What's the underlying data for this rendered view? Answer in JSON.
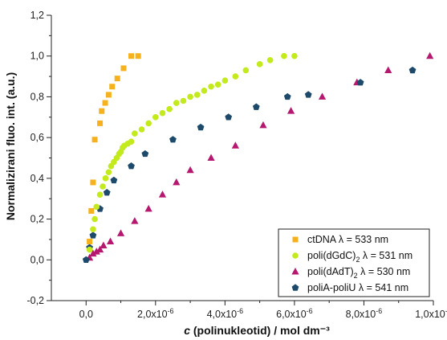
{
  "chart_data": {
    "type": "scatter",
    "xlabel": {
      "italic": "c",
      "rest": " (polinukleotid) / mol dm⁻³"
    },
    "ylabel": "Normalizirani fluo. int. (a.u.)",
    "xlim": [
      -1e-06,
      1e-05
    ],
    "ylim": [
      -0.2,
      1.2
    ],
    "x_ticks": [
      0,
      2e-06,
      4e-06,
      6e-06,
      8e-06,
      1e-05
    ],
    "x_tick_labels": [
      "0,0",
      "2,0x10-6",
      "4,0x10-6",
      "6,0x10-6",
      "8,0x10-6",
      "1,0x10-5"
    ],
    "y_ticks": [
      -0.2,
      0.0,
      0.2,
      0.4,
      0.6,
      0.8,
      1.0,
      1.2
    ],
    "y_tick_labels": [
      "-0,2",
      "0,0",
      "0,2",
      "0,4",
      "0,6",
      "0,8",
      "1,0",
      "1,2"
    ],
    "legend_position": "bottom-right",
    "series": [
      {
        "name": "ctDNA λ = 533 nm",
        "marker": "square",
        "color": "#f5b21e",
        "x": [
          1e-07,
          1.5e-07,
          2e-07,
          2.5e-07,
          4e-07,
          4.5e-07,
          5.5e-07,
          6.5e-07,
          7.5e-07,
          9e-07,
          1.08e-06,
          1.3e-06,
          1.5e-06
        ],
        "y": [
          0.09,
          0.24,
          0.38,
          0.59,
          0.67,
          0.73,
          0.77,
          0.81,
          0.85,
          0.89,
          0.94,
          1.0,
          1.0
        ]
      },
      {
        "name_main": "poli(dGdC)",
        "name_sub": "2",
        "name_rest": " λ = 531 nm",
        "marker": "circle",
        "color": "#c3ea1c",
        "x": [
          1e-07,
          2e-07,
          2.5e-07,
          3e-07,
          4e-07,
          4.8e-07,
          5.6e-07,
          6.5e-07,
          7.2e-07,
          8e-07,
          8.8e-07,
          9.5e-07,
          1e-06,
          1.05e-06,
          1.1e-06,
          1.2e-06,
          1.3e-06,
          1.4e-06,
          1.6e-06,
          1.8e-06,
          2e-06,
          2.2e-06,
          2.4e-06,
          2.6e-06,
          2.8e-06,
          3e-06,
          3.2e-06,
          3.4e-06,
          3.6e-06,
          3.8e-06,
          4e-06,
          4.3e-06,
          4.6e-06,
          5e-06,
          5.3e-06,
          5.7e-06,
          6e-06
        ],
        "y": [
          0.05,
          0.15,
          0.2,
          0.26,
          0.32,
          0.36,
          0.4,
          0.43,
          0.46,
          0.48,
          0.5,
          0.52,
          0.53,
          0.55,
          0.56,
          0.57,
          0.58,
          0.62,
          0.64,
          0.67,
          0.7,
          0.72,
          0.74,
          0.77,
          0.78,
          0.8,
          0.81,
          0.83,
          0.85,
          0.86,
          0.88,
          0.9,
          0.93,
          0.96,
          0.98,
          1.0,
          1.0
        ],
        "name": "poli(dGdC)2 λ = 531 nm"
      },
      {
        "name_main": "poli(dAdT)",
        "name_sub": "2",
        "name_rest": " λ = 530 nm",
        "marker": "triangle",
        "color": "#b5186e",
        "x": [
          1e-07,
          2e-07,
          3e-07,
          4e-07,
          5e-07,
          7e-07,
          1e-06,
          1.4e-06,
          1.8e-06,
          2.2e-06,
          2.6e-06,
          3e-06,
          3.6e-06,
          4.3e-06,
          5.1e-06,
          5.9e-06,
          6.8e-06,
          7.8e-06,
          8.7e-06,
          9.9e-06
        ],
        "y": [
          0.01,
          0.03,
          0.04,
          0.05,
          0.07,
          0.09,
          0.13,
          0.19,
          0.25,
          0.32,
          0.38,
          0.44,
          0.5,
          0.56,
          0.66,
          0.73,
          0.8,
          0.87,
          0.93,
          1.0
        ],
        "name": "poli(dAdT)2 λ = 530 nm"
      },
      {
        "name": "poliA-poliU λ = 541 nm",
        "marker": "pentagon",
        "color": "#1d4a6b",
        "x": [
          0.0,
          1e-07,
          2e-07,
          4e-07,
          6e-07,
          8e-07,
          1.3e-06,
          1.7e-06,
          2.5e-06,
          3.3e-06,
          4.1e-06,
          4.9e-06,
          5.8e-06,
          6.4e-06,
          7.9e-06,
          9.4e-06
        ],
        "y": [
          0.0,
          0.06,
          0.12,
          0.25,
          0.33,
          0.39,
          0.46,
          0.52,
          0.59,
          0.65,
          0.7,
          0.75,
          0.8,
          0.81,
          0.87,
          0.93
        ]
      }
    ]
  }
}
